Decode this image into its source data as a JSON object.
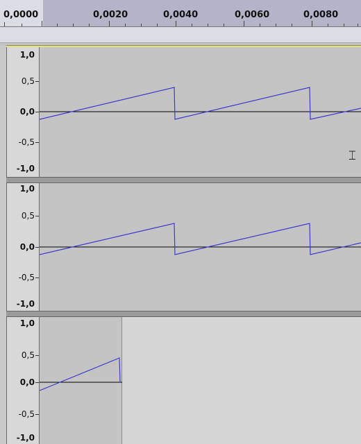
{
  "ruler": {
    "labels": [
      "0,0000",
      "0,0020",
      "0,0040",
      "0,0060",
      "0,0080"
    ]
  },
  "tracks": [
    {
      "name": "channel-left",
      "scale_labels": {
        "top": "1,0",
        "upper_half": "0,5",
        "zero": "0,0",
        "lower_half": "-0,5",
        "bottom": "-1,0"
      },
      "waveform": "sawtooth",
      "wave_color": "#3a3ad0"
    },
    {
      "name": "channel-right",
      "scale_labels": {
        "top": "1,0",
        "upper_half": "0,5",
        "zero": "0,0",
        "lower_half": "-0,5",
        "bottom": "-1,0"
      },
      "waveform": "sawtooth",
      "wave_color": "#3a3ad0"
    },
    {
      "name": "clip-track",
      "scale_labels": {
        "top": "1,0",
        "upper_half": "0,5",
        "zero": "0,0",
        "lower_half": "-0,5",
        "bottom": "-1,0"
      },
      "waveform": "sawtooth",
      "wave_color": "#3a3ad0"
    }
  ],
  "cursor": {
    "icon": "ibeam-cursor-icon"
  }
}
